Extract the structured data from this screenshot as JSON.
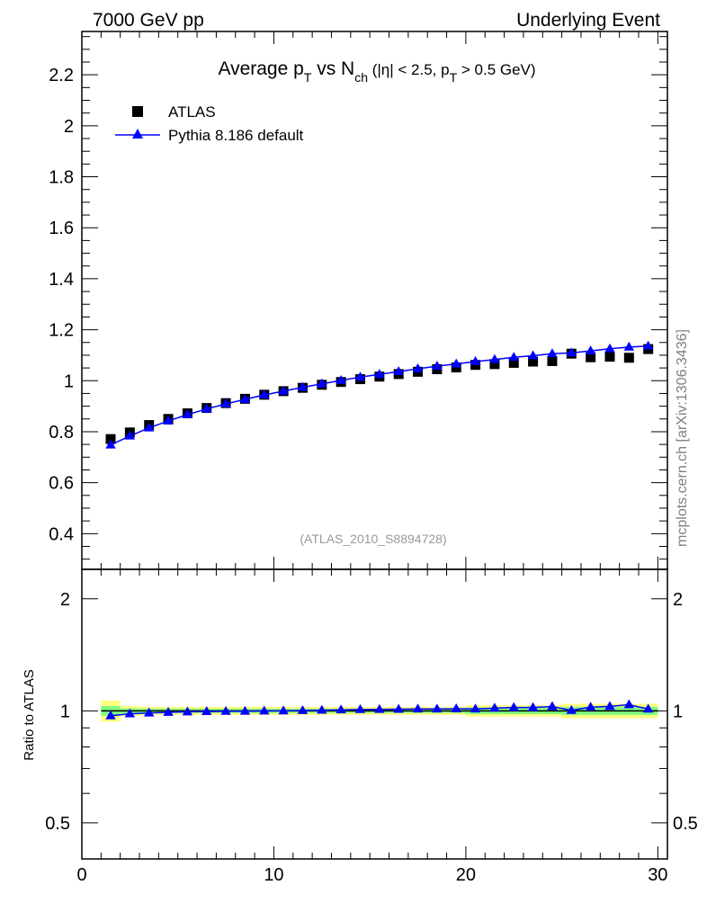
{
  "header": {
    "left": "7000 GeV pp",
    "right": "Underlying Event",
    "side": "mcplots.cern.ch [arXiv:1306.3436]"
  },
  "title": {
    "part1": "Average p",
    "sub1": "T",
    "part2": " vs N",
    "sub2": "ch",
    "part3": " (|η| < 2.5, p",
    "sub3": "T",
    "part4": " > 0.5 GeV)"
  },
  "reference": "(ATLAS_2010_S8894728)",
  "ratio_ylabel": "Ratio to ATLAS",
  "legend": [
    {
      "label": "ATLAS",
      "marker": "square",
      "color": "#000000"
    },
    {
      "label": "Pythia 8.186 default",
      "marker": "triangle",
      "color": "#0000ff"
    }
  ],
  "colors": {
    "data": "#000000",
    "mc": "#0000ff",
    "band_outer": "#ffff80",
    "band_inner": "#80ff80"
  },
  "main_yticks": [
    "0.4",
    "0.6",
    "0.8",
    "1",
    "1.2",
    "1.4",
    "1.6",
    "1.8",
    "2",
    "2.2"
  ],
  "ratio_yticks": [
    "0.5",
    "1",
    "2"
  ],
  "xticks": [
    "0",
    "10",
    "20",
    "30"
  ],
  "chart_data": {
    "type": "scatter",
    "x": [
      1.5,
      2.5,
      3.5,
      4.5,
      5.5,
      6.5,
      7.5,
      8.5,
      9.5,
      10.5,
      11.5,
      12.5,
      13.5,
      14.5,
      15.5,
      16.5,
      17.5,
      18.5,
      19.5,
      20.5,
      21.5,
      22.5,
      23.5,
      24.5,
      25.5,
      26.5,
      27.5,
      28.5,
      29.5
    ],
    "xlim": [
      0,
      30.5
    ],
    "ylim": [
      0.26,
      2.37
    ],
    "ratio_ylim": [
      0.4,
      2.4
    ],
    "ratio_scale": "log",
    "series": [
      {
        "name": "ATLAS",
        "values": [
          0.771,
          0.797,
          0.826,
          0.85,
          0.872,
          0.893,
          0.912,
          0.929,
          0.945,
          0.959,
          0.972,
          0.984,
          0.995,
          1.006,
          1.016,
          1.026,
          1.035,
          1.045,
          1.052,
          1.062,
          1.065,
          1.07,
          1.075,
          1.077,
          1.106,
          1.092,
          1.094,
          1.09,
          1.124
        ]
      },
      {
        "name": "Pythia 8.186 default",
        "values": [
          0.748,
          0.783,
          0.815,
          0.842,
          0.867,
          0.889,
          0.909,
          0.927,
          0.944,
          0.959,
          0.974,
          0.988,
          1.001,
          1.014,
          1.025,
          1.036,
          1.047,
          1.057,
          1.066,
          1.075,
          1.083,
          1.092,
          1.098,
          1.106,
          1.109,
          1.117,
          1.125,
          1.132,
          1.136
        ]
      }
    ],
    "ratio": [
      0.97,
      0.982,
      0.987,
      0.991,
      0.994,
      0.996,
      0.997,
      0.998,
      0.999,
      1.0,
      1.002,
      1.004,
      1.006,
      1.008,
      1.009,
      1.01,
      1.012,
      1.012,
      1.013,
      1.012,
      1.017,
      1.021,
      1.021,
      1.027,
      1.003,
      1.023,
      1.028,
      1.039,
      1.011
    ],
    "band_inner": [
      0.03,
      0.015,
      0.013,
      0.013,
      0.013,
      0.013,
      0.013,
      0.013,
      0.013,
      0.013,
      0.013,
      0.013,
      0.013,
      0.013,
      0.013,
      0.013,
      0.013,
      0.013,
      0.013,
      0.02,
      0.02,
      0.02,
      0.02,
      0.02,
      0.025,
      0.025,
      0.025,
      0.025,
      0.025
    ],
    "band_outer": [
      0.065,
      0.03,
      0.025,
      0.025,
      0.025,
      0.025,
      0.025,
      0.025,
      0.025,
      0.025,
      0.025,
      0.025,
      0.025,
      0.025,
      0.025,
      0.025,
      0.025,
      0.025,
      0.025,
      0.035,
      0.035,
      0.035,
      0.035,
      0.035,
      0.045,
      0.045,
      0.045,
      0.045,
      0.045
    ],
    "ratio_reference": 1.0
  }
}
